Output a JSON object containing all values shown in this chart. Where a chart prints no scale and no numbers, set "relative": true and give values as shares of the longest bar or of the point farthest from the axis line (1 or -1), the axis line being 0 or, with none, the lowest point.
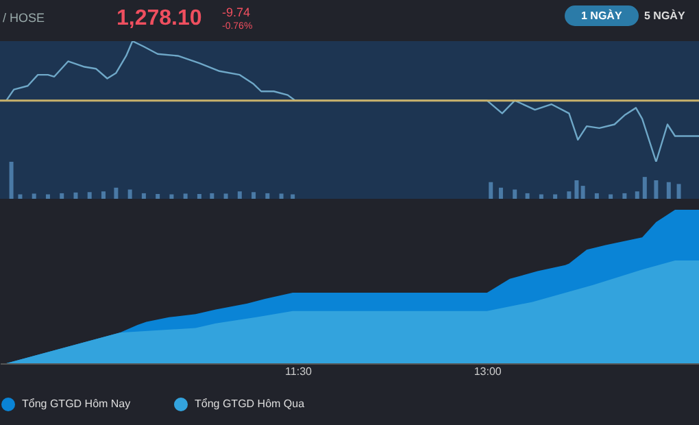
{
  "chart_data": [
    {
      "type": "line",
      "relative": true,
      "annotations": [
        "/ HOSE",
        "1,278.10",
        "-9.74",
        "-0.76%",
        "1 NGÀY",
        "5 NGÀY"
      ],
      "series": [
        {
          "color": "#6fa8c8",
          "x": [
            9.19,
            9.25,
            9.36,
            9.44,
            9.52,
            9.57,
            9.68,
            9.81,
            9.9,
            9.99,
            10.06,
            10.14,
            10.19,
            10.28,
            10.39,
            10.55,
            10.72,
            10.88,
            11.04,
            11.15,
            11.21,
            11.31,
            11.42,
            11.48,
            13,
            13.12,
            13.22,
            13.38,
            13.51,
            13.65,
            13.72,
            13.79,
            13.89,
            14.01,
            14.09,
            14.18,
            14.23,
            14.34,
            14.43,
            14.49,
            14.68
          ],
          "values": [
            0,
            0.18,
            0.24,
            0.42,
            0.42,
            0.39,
            0.64,
            0.55,
            0.52,
            0.36,
            0.45,
            0.73,
            0.97,
            0.88,
            0.76,
            0.73,
            0.61,
            0.48,
            0.42,
            0.27,
            0.15,
            0.15,
            0.09,
            0,
            0,
            -0.21,
            0,
            -0.15,
            -0.06,
            -0.21,
            -0.64,
            -0.42,
            -0.45,
            -0.39,
            -0.24,
            -0.12,
            -0.3,
            -1,
            -0.39,
            -0.58,
            -0.58
          ]
        }
      ],
      "ref_lines": [
        {
          "axis": "y",
          "value": 0,
          "color": "#c9b26b"
        }
      ],
      "xlim": [
        9.14,
        14.68
      ]
    },
    {
      "type": "bar",
      "relative": true,
      "xlim": [
        9.14,
        14.68
      ],
      "series": [
        {
          "color": "#4a7aa6",
          "x": [
            9.23,
            9.3,
            9.41,
            9.52,
            9.63,
            9.74,
            9.85,
            9.96,
            10.06,
            10.17,
            10.28,
            10.39,
            10.5,
            10.61,
            10.72,
            10.82,
            10.93,
            11.04,
            11.15,
            11.26,
            11.37,
            11.46,
            13.03,
            13.11,
            13.22,
            13.32,
            13.43,
            13.54,
            13.65,
            13.71,
            13.76,
            13.87,
            13.98,
            14.09,
            14.19,
            14.25,
            14.34,
            14.44,
            14.52
          ],
          "values": [
            1,
            0.12,
            0.14,
            0.12,
            0.15,
            0.17,
            0.18,
            0.2,
            0.3,
            0.25,
            0.15,
            0.13,
            0.12,
            0.14,
            0.13,
            0.15,
            0.14,
            0.2,
            0.18,
            0.15,
            0.14,
            0.12,
            0.45,
            0.3,
            0.25,
            0.15,
            0.12,
            0.12,
            0.2,
            0.5,
            0.35,
            0.15,
            0.12,
            0.15,
            0.2,
            0.59,
            0.5,
            0.45,
            0.4
          ]
        }
      ]
    },
    {
      "type": "area",
      "relative": true,
      "legend": "bottom",
      "xlim": [
        9.14,
        14.68
      ],
      "xticks": [
        {
          "value": 11.5,
          "label": "11:30"
        },
        {
          "value": 13,
          "label": "13:00"
        }
      ],
      "series": [
        {
          "name": "Tổng GTGD Hôm Nay",
          "color": "#0a84d6",
          "x": [
            9.19,
            10.09,
            10.23,
            10.3,
            10.48,
            10.69,
            10.85,
            11.1,
            11.24,
            11.46,
            13,
            13.18,
            13.4,
            13.62,
            13.65,
            13.79,
            13.94,
            14.23,
            14.34,
            14.49,
            14.68
          ],
          "values": [
            0,
            0.2,
            0.25,
            0.27,
            0.3,
            0.32,
            0.35,
            0.39,
            0.42,
            0.46,
            0.46,
            0.55,
            0.6,
            0.64,
            0.65,
            0.74,
            0.77,
            0.82,
            0.92,
            1,
            1
          ]
        },
        {
          "name": "Tổng GTGD Hôm Qua",
          "color": "#33a3dd",
          "x": [
            9.19,
            10.09,
            10.69,
            10.85,
            11.17,
            11.46,
            13,
            13.36,
            13.84,
            14.23,
            14.49,
            14.68
          ],
          "values": [
            0,
            0.2,
            0.23,
            0.26,
            0.3,
            0.34,
            0.34,
            0.4,
            0.51,
            0.61,
            0.67,
            0.67
          ]
        }
      ]
    }
  ]
}
